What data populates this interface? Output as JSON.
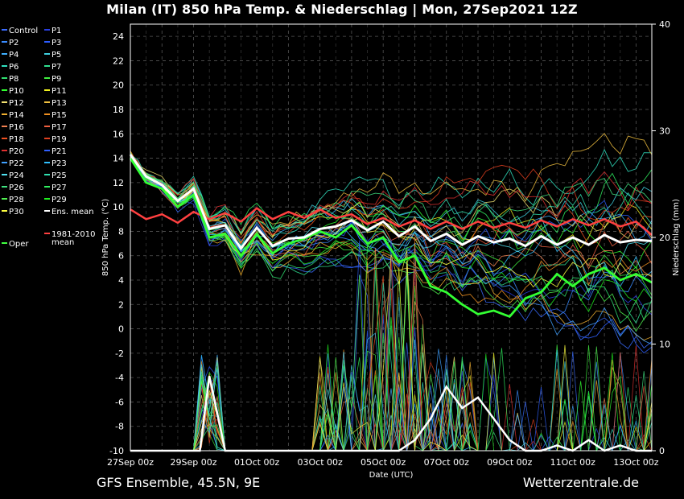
{
  "title": "Milan  (IT)  850 hPa Temp. & Niederschlag | Mon, 27Sep2021 12Z",
  "footer_left": "GFS Ensemble, 45.5N, 9E",
  "footer_right": "Wetterzentrale.de",
  "chart_data": {
    "type": "line",
    "ylabel": "850 hPa Temp. (°C)",
    "y2label": "Niederschlag (mm)",
    "xlabel": "Date (UTC)",
    "ylim": [
      -10,
      25
    ],
    "y2lim": [
      0,
      40
    ],
    "y_ticks": [
      24,
      22,
      20,
      18,
      16,
      14,
      12,
      10,
      8,
      6,
      4,
      2,
      0,
      -2,
      -4,
      -6,
      -8,
      -10
    ],
    "y2_ticks": [
      40,
      30,
      20,
      10,
      0
    ],
    "x_ticks": [
      "27Sep 00z",
      "29Sep 00z",
      "01Oct 00z",
      "03Oct 00z",
      "05Oct 00z",
      "07Oct 00z",
      "09Oct 00z",
      "11Oct 00z",
      "13Oct 00z"
    ],
    "x_range_days": [
      0,
      16.5
    ],
    "grid": true,
    "legend_placement": "left outside",
    "legend": [
      {
        "name": "Control",
        "color": "#3a6cff"
      },
      {
        "name": "P1",
        "color": "#2a3fe0"
      },
      {
        "name": "P2",
        "color": "#3a8cff"
      },
      {
        "name": "P3",
        "color": "#2c5cff"
      },
      {
        "name": "P4",
        "color": "#3fb0ff"
      },
      {
        "name": "P5",
        "color": "#3fd0e0"
      },
      {
        "name": "P6",
        "color": "#30e0c0"
      },
      {
        "name": "P7",
        "color": "#30e090"
      },
      {
        "name": "P8",
        "color": "#30e070"
      },
      {
        "name": "P9",
        "color": "#40f040"
      },
      {
        "name": "P10",
        "color": "#30ff30"
      },
      {
        "name": "P11",
        "color": "#f0f020"
      },
      {
        "name": "P12",
        "color": "#f0e070"
      },
      {
        "name": "P13",
        "color": "#f0c040"
      },
      {
        "name": "P14",
        "color": "#f0b030"
      },
      {
        "name": "P15",
        "color": "#f09020"
      },
      {
        "name": "P16",
        "color": "#f08050"
      },
      {
        "name": "P17",
        "color": "#f06040"
      },
      {
        "name": "P18",
        "color": "#f05020"
      },
      {
        "name": "P19",
        "color": "#e04020"
      },
      {
        "name": "P20",
        "color": "#e03030"
      },
      {
        "name": "P21",
        "color": "#3060ff"
      },
      {
        "name": "P22",
        "color": "#40a0ff"
      },
      {
        "name": "P23",
        "color": "#30c0ff"
      },
      {
        "name": "P24",
        "color": "#50e0f0"
      },
      {
        "name": "P25",
        "color": "#30e0b0"
      },
      {
        "name": "P26",
        "color": "#40e080"
      },
      {
        "name": "P27",
        "color": "#30f060"
      },
      {
        "name": "P28",
        "color": "#50f050"
      },
      {
        "name": "P29",
        "color": "#20f020"
      },
      {
        "name": "P30",
        "color": "#ffff40"
      },
      {
        "name": "Ens. mean",
        "color": "#ffffff"
      },
      {
        "name": "1981-2010\nmean",
        "color": "#ff4040"
      },
      {
        "name": "Oper",
        "color": "#40ff40"
      }
    ],
    "series": [
      {
        "name": "Ens. mean",
        "x": [
          0,
          0.5,
          1,
          1.5,
          2,
          2.5,
          3,
          3.5,
          4,
          4.5,
          5,
          5.5,
          6,
          6.5,
          7,
          7.5,
          8,
          8.5,
          9,
          9.5,
          10,
          10.5,
          11,
          11.5,
          12,
          12.5,
          13,
          13.5,
          14,
          14.5,
          15,
          15.5,
          16,
          16.5
        ],
        "y": [
          14.3,
          12.5,
          11.8,
          10.5,
          11.5,
          8.2,
          8.5,
          6.6,
          8.3,
          6.8,
          7.4,
          7.5,
          8.2,
          8.4,
          8.9,
          8.1,
          8.8,
          7.6,
          8.4,
          7.2,
          7.8,
          6.9,
          7.6,
          7.1,
          7.4,
          6.8,
          7.6,
          6.9,
          7.5,
          6.9,
          7.7,
          7.1,
          7.3,
          7.2
        ]
      },
      {
        "name": "1981-2010\nmean",
        "x": [
          0,
          0.5,
          1,
          1.5,
          2,
          2.5,
          3,
          3.5,
          4,
          4.5,
          5,
          5.5,
          6,
          6.5,
          7,
          7.5,
          8,
          8.5,
          9,
          9.5,
          10,
          10.5,
          11,
          11.5,
          12,
          12.5,
          13,
          13.5,
          14,
          14.5,
          15,
          15.5,
          16,
          16.5
        ],
        "y": [
          9.8,
          9.0,
          9.4,
          8.7,
          9.6,
          9.0,
          9.5,
          8.8,
          9.9,
          9.0,
          9.6,
          9.1,
          9.8,
          9.1,
          9.4,
          8.6,
          9.1,
          8.4,
          8.9,
          8.2,
          8.8,
          8.2,
          8.8,
          8.3,
          8.7,
          8.3,
          8.9,
          8.4,
          9.0,
          8.5,
          9.0,
          8.4,
          8.8,
          7.7
        ]
      },
      {
        "name": "Oper",
        "x": [
          0,
          0.5,
          1,
          1.5,
          2,
          2.5,
          3,
          3.5,
          4,
          4.5,
          5,
          5.5,
          6,
          6.5,
          7,
          7.5,
          8,
          8.5,
          9,
          9.5,
          10,
          10.5,
          11,
          11.5,
          12,
          12.5,
          13,
          13.5,
          14,
          14.5,
          15,
          15.5,
          16,
          16.5
        ],
        "y": [
          14.0,
          12.0,
          11.5,
          10.0,
          11.0,
          7.5,
          7.8,
          6.0,
          7.8,
          6.2,
          7.0,
          7.4,
          8.0,
          7.5,
          8.5,
          7.0,
          7.5,
          5.5,
          6.0,
          3.5,
          3.0,
          2.0,
          1.2,
          1.5,
          1.0,
          2.5,
          3.0,
          4.5,
          3.5,
          4.5,
          5.0,
          4.0,
          4.5,
          3.8
        ]
      }
    ],
    "precip_mean": {
      "x": [
        0,
        2.2,
        2.5,
        3,
        8.5,
        9,
        9.5,
        10,
        10.5,
        11,
        11.5,
        12,
        12.5,
        13,
        13.5,
        14,
        14.5,
        15,
        15.5,
        16,
        16.5
      ],
      "y": [
        0,
        0,
        7,
        0,
        0,
        1,
        3,
        6,
        4,
        5,
        3,
        1,
        0,
        0,
        0.5,
        0,
        1,
        0,
        0.5,
        0,
        0
      ]
    }
  }
}
